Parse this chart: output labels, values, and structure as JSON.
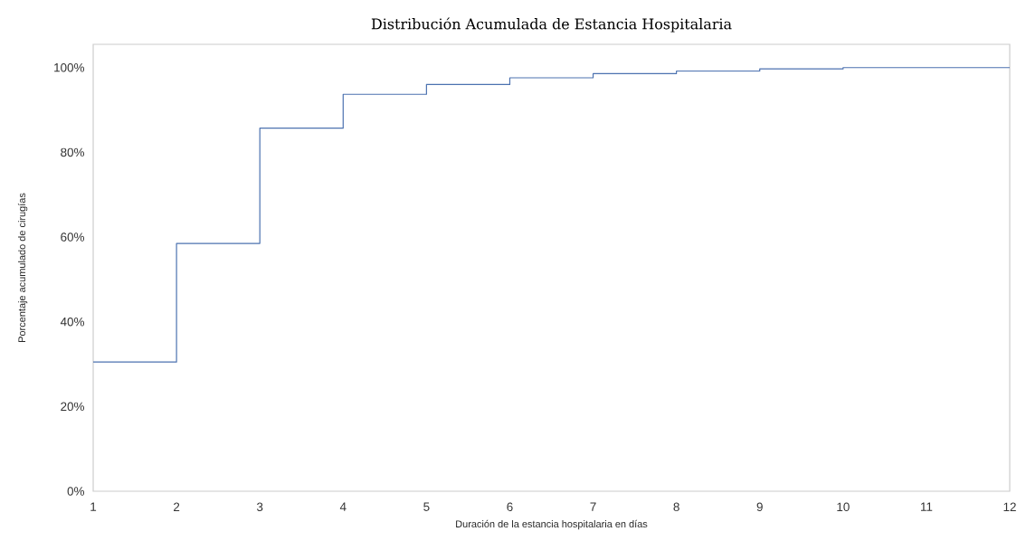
{
  "chart_data": {
    "type": "step",
    "title": "Distribución Acumulada de Estancia Hospitalaria",
    "xlabel": "Duración de la estancia hospitalaria en días",
    "ylabel": "Porcentaje acumulado de cirugías",
    "x": [
      1,
      2,
      3,
      4,
      5,
      6,
      7,
      8,
      9,
      10,
      11,
      12
    ],
    "series": [
      {
        "color": "#4c72b0",
        "values": [
          30.5,
          58.5,
          85.7,
          93.7,
          96.0,
          97.6,
          98.6,
          99.2,
          99.7,
          100,
          100,
          100
        ]
      }
    ],
    "xlim": [
      1,
      12
    ],
    "ylim": [
      0,
      105.5
    ],
    "xticks": [
      1,
      2,
      3,
      4,
      5,
      6,
      7,
      8,
      9,
      10,
      11,
      12
    ],
    "yticks": [
      {
        "value": 0,
        "label": "0%"
      },
      {
        "value": 20,
        "label": "20%"
      },
      {
        "value": 40,
        "label": "40%"
      },
      {
        "value": 60,
        "label": "60%"
      },
      {
        "value": 80,
        "label": "80%"
      },
      {
        "value": 100,
        "label": "100%"
      }
    ],
    "grid": false,
    "marker": "none",
    "line_style": "solid"
  }
}
